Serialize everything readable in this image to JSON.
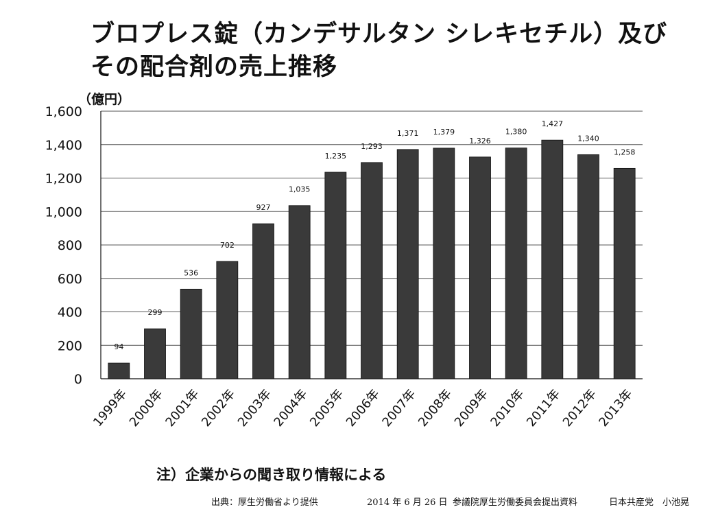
{
  "title_lines": [
    "ブロプレス錠（カンデサルタン シレキセチル）及び",
    "その配合剤の売上推移"
  ],
  "note": "注）企業からの聞き取り情報による",
  "footer": {
    "source": "出典：厚生労働省より提供",
    "date": "2014 年 6 月 26 日",
    "committee": "参議院厚生労働委員会提出資料",
    "party": "日本共産党　小池晃"
  },
  "colors": {
    "bar": "#3a3a3a",
    "grid": "#555555",
    "axis": "#111111"
  },
  "chart_data": {
    "type": "bar",
    "categories": [
      "1999年",
      "2000年",
      "2001年",
      "2002年",
      "2003年",
      "2004年",
      "2005年",
      "2006年",
      "2007年",
      "2008年",
      "2009年",
      "2010年",
      "2011年",
      "2012年",
      "2013年"
    ],
    "values": [
      94,
      299,
      536,
      702,
      927,
      1035,
      1235,
      1293,
      1371,
      1379,
      1326,
      1380,
      1427,
      1340,
      1258
    ],
    "data_labels": [
      "94",
      "299",
      "536",
      "702",
      "927",
      "1,035",
      "1,235",
      "1,293",
      "1,371",
      "1,379",
      "1,326",
      "1,380",
      "1,427",
      "1,340",
      "1,258"
    ],
    "ylabel": "（億円）",
    "ylim": [
      0,
      1600
    ],
    "yticks": [
      0,
      200,
      400,
      600,
      800,
      1000,
      1200,
      1400,
      1600
    ],
    "ytick_labels": [
      "0",
      "200",
      "400",
      "600",
      "800",
      "1,000",
      "1,200",
      "1,400",
      "1,600"
    ],
    "grid": true,
    "legend": "none"
  }
}
